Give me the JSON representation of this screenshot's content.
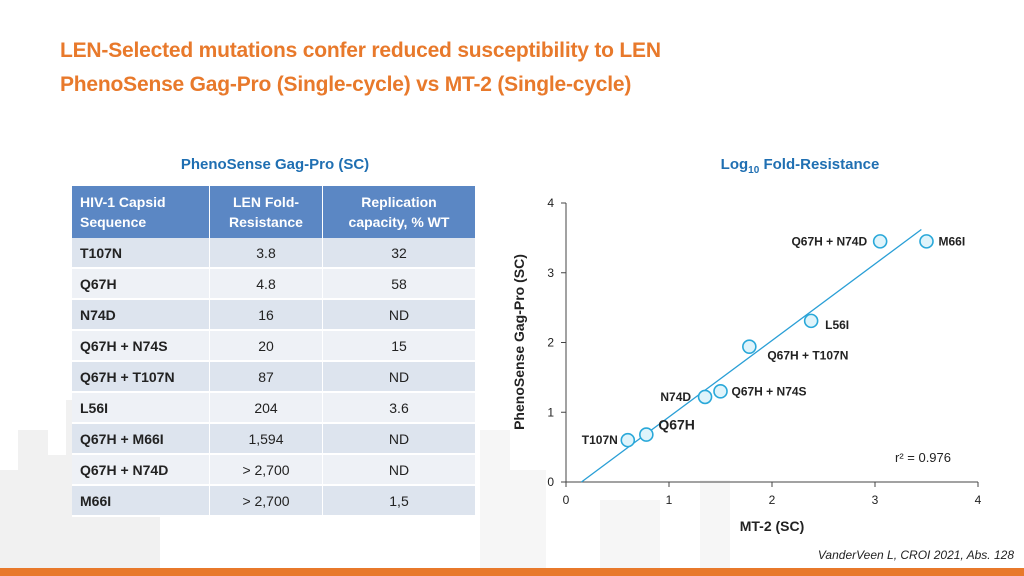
{
  "title_line1": "LEN-Selected mutations confer reduced susceptibility to LEN",
  "title_line2": "PhenoSense Gag-Pro (Single-cycle) vs MT-2 (Single-cycle)",
  "table_heading": "PhenoSense Gag-Pro (SC)",
  "chart_heading": {
    "prefix": "Log",
    "sub": "10",
    "suffix": " Fold-Resistance"
  },
  "table": {
    "headers": [
      [
        "HIV-1 Capsid",
        "Sequence"
      ],
      [
        "LEN Fold-",
        "Resistance"
      ],
      [
        "Replication",
        "capacity, % WT"
      ]
    ],
    "rows": [
      [
        "T107N",
        "3.8",
        "32"
      ],
      [
        "Q67H",
        "4.8",
        "58"
      ],
      [
        "N74D",
        "16",
        "ND"
      ],
      [
        "Q67H + N74S",
        "20",
        "15"
      ],
      [
        "Q67H + T107N",
        "87",
        "ND"
      ],
      [
        "L56I",
        "204",
        "3.6"
      ],
      [
        "Q67H + M66I",
        "1,594",
        "ND"
      ],
      [
        "Q67H + N74D",
        "> 2,700",
        "ND"
      ],
      [
        "M66I",
        "> 2,700",
        "1,5"
      ]
    ]
  },
  "citation": "VanderVeen L, CROI 2021, Abs. 128",
  "colors": {
    "title": "#e8792b",
    "heading": "#1f6fb2",
    "table_header": "#5b87c4",
    "point_fill": "#dff4fb",
    "point_stroke": "#29a8d9",
    "fit_line": "#2a9fd6"
  },
  "chart_data": {
    "type": "scatter",
    "xlabel": "MT-2 (SC)",
    "ylabel": "PhenoSense Gag-Pro (SC)",
    "xlim": [
      0,
      4
    ],
    "ylim": [
      0,
      4
    ],
    "xticks": [
      "0",
      "1",
      "2",
      "3",
      "4"
    ],
    "yticks": [
      "0",
      "1",
      "2",
      "3",
      "4"
    ],
    "annotation": "r² = 0.976",
    "fit_line": {
      "x": [
        0.15,
        3.45
      ],
      "y": [
        0,
        3.62
      ]
    },
    "points": [
      {
        "label": "T107N",
        "x": 0.6,
        "y": 0.6
      },
      {
        "label": "Q67H",
        "x": 0.78,
        "y": 0.68
      },
      {
        "label": "N74D",
        "x": 1.35,
        "y": 1.22
      },
      {
        "label": "Q67H + N74S",
        "x": 1.5,
        "y": 1.3
      },
      {
        "label": "Q67H + T107N",
        "x": 1.78,
        "y": 1.94
      },
      {
        "label": "L56I",
        "x": 2.38,
        "y": 2.31
      },
      {
        "label": "Q67H + N74D",
        "x": 3.05,
        "y": 3.45
      },
      {
        "label": "M66I",
        "x": 3.5,
        "y": 3.45
      }
    ]
  }
}
